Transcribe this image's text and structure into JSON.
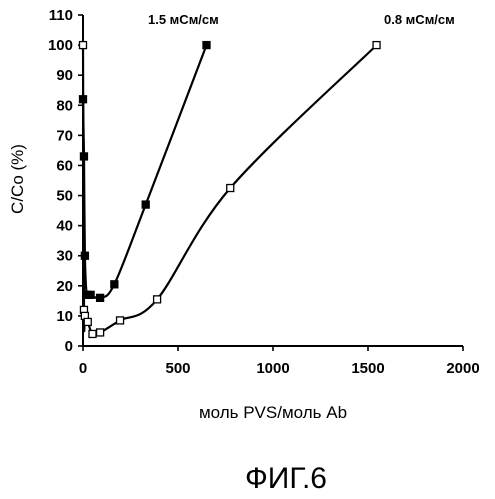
{
  "chart_data": {
    "type": "scatter",
    "xlabel": "моль PVS/моль Ab",
    "ylabel": "C/Co (%)",
    "xlim": [
      0,
      2000
    ],
    "ylim": [
      0,
      110
    ],
    "xticks": [
      0,
      500,
      1000,
      1500,
      2000
    ],
    "yticks": [
      0,
      10,
      20,
      30,
      40,
      50,
      60,
      70,
      80,
      90,
      100,
      110
    ],
    "grid": false,
    "series": [
      {
        "name": "1.5 мСм/см",
        "marker": "filled-square",
        "x": [
          0,
          5,
          10,
          20,
          40,
          90,
          165,
          330,
          650
        ],
        "y": [
          82,
          63,
          30,
          17,
          17,
          16,
          20.5,
          47,
          100
        ]
      },
      {
        "name": "0.8 мСм/см",
        "marker": "open-square",
        "x": [
          0,
          5,
          10,
          25,
          50,
          90,
          195,
          390,
          775,
          1545
        ],
        "y": [
          100,
          12,
          10,
          8,
          4,
          4.5,
          8.5,
          15.5,
          52.5,
          100
        ]
      }
    ]
  },
  "caption": "ФИГ.6"
}
